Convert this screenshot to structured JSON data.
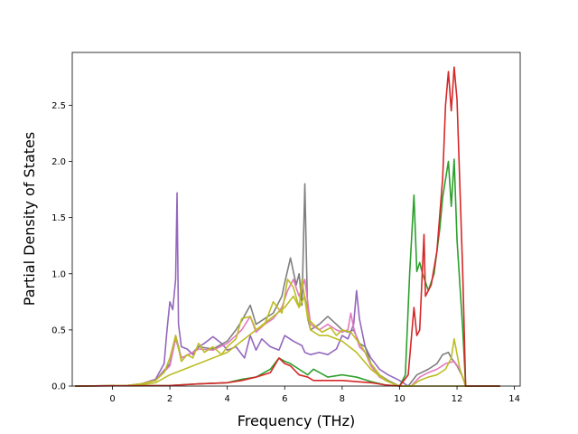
{
  "chart_data": {
    "type": "line",
    "title": "",
    "xlabel": "Frequency (THz)",
    "ylabel": "Partial Density of States",
    "xlim": [
      -1.4,
      14.2
    ],
    "ylim": [
      0.0,
      2.97
    ],
    "xticks": [
      0,
      2,
      4,
      6,
      8,
      10,
      12,
      14
    ],
    "yticks": [
      0.0,
      0.5,
      1.0,
      1.5,
      2.0,
      2.5
    ],
    "xtick_labels": [
      "0",
      "2",
      "4",
      "6",
      "8",
      "10",
      "12",
      "14"
    ],
    "ytick_labels": [
      "0.0",
      "0.5",
      "1.0",
      "1.5",
      "2.0",
      "2.5"
    ],
    "grid": false,
    "legend": "none",
    "series": [
      {
        "color": "#9467bd",
        "x": [
          -1.3,
          0.5,
          1.0,
          1.5,
          1.8,
          1.9,
          2.0,
          2.1,
          2.2,
          2.25,
          2.3,
          2.4,
          2.6,
          2.8,
          3.0,
          3.2,
          3.5,
          3.8,
          4.0,
          4.3,
          4.6,
          4.8,
          5.0,
          5.2,
          5.5,
          5.8,
          6.0,
          6.3,
          6.6,
          6.7,
          6.9,
          7.2,
          7.5,
          7.8,
          8.0,
          8.2,
          8.4,
          8.5,
          8.6,
          8.8,
          9.0,
          9.3,
          9.6,
          10.0,
          10.3,
          13.5
        ],
        "y": [
          0,
          0.005,
          0.02,
          0.06,
          0.2,
          0.5,
          0.75,
          0.68,
          0.95,
          1.72,
          0.55,
          0.35,
          0.33,
          0.28,
          0.35,
          0.38,
          0.44,
          0.38,
          0.32,
          0.35,
          0.25,
          0.45,
          0.32,
          0.42,
          0.35,
          0.32,
          0.45,
          0.4,
          0.36,
          0.3,
          0.28,
          0.3,
          0.28,
          0.33,
          0.45,
          0.42,
          0.55,
          0.85,
          0.6,
          0.35,
          0.25,
          0.15,
          0.1,
          0.05,
          0.0,
          0.0
        ]
      },
      {
        "color": "#7f7f7f",
        "x": [
          -1.3,
          0.5,
          1.0,
          1.5,
          2.0,
          2.2,
          2.4,
          2.8,
          3.0,
          3.5,
          4.0,
          4.3,
          4.5,
          4.8,
          5.0,
          5.3,
          5.6,
          5.9,
          6.0,
          6.2,
          6.4,
          6.5,
          6.6,
          6.7,
          6.8,
          6.9,
          7.2,
          7.5,
          7.8,
          8.0,
          8.2,
          8.4,
          8.6,
          8.8,
          9.0,
          9.3,
          9.6,
          10.0,
          10.3,
          10.6,
          11.0,
          11.3,
          11.5,
          11.7,
          11.8,
          12.0,
          12.2,
          12.3,
          13.5
        ],
        "y": [
          0,
          0.005,
          0.02,
          0.05,
          0.2,
          0.45,
          0.25,
          0.3,
          0.35,
          0.33,
          0.4,
          0.5,
          0.58,
          0.72,
          0.55,
          0.6,
          0.65,
          0.8,
          0.92,
          1.14,
          0.9,
          1.0,
          0.72,
          1.8,
          0.6,
          0.5,
          0.55,
          0.62,
          0.55,
          0.5,
          0.48,
          0.5,
          0.38,
          0.35,
          0.2,
          0.1,
          0.05,
          0.0,
          0.0,
          0.1,
          0.15,
          0.2,
          0.28,
          0.3,
          0.25,
          0.18,
          0.08,
          0.0,
          0.0
        ]
      },
      {
        "color": "#e377c2",
        "x": [
          -1.3,
          0.5,
          1.0,
          1.5,
          2.0,
          2.2,
          2.4,
          2.8,
          3.0,
          3.5,
          4.0,
          4.3,
          4.5,
          4.8,
          5.0,
          5.3,
          5.6,
          5.9,
          6.1,
          6.3,
          6.5,
          6.7,
          6.9,
          7.2,
          7.5,
          7.8,
          8.0,
          8.2,
          8.3,
          8.4,
          8.6,
          8.8,
          9.0,
          9.3,
          9.6,
          10.0,
          10.4,
          10.7,
          11.0,
          11.3,
          11.6,
          11.9,
          12.1,
          12.3,
          13.5
        ],
        "y": [
          0,
          0.005,
          0.02,
          0.05,
          0.18,
          0.42,
          0.25,
          0.3,
          0.33,
          0.32,
          0.38,
          0.45,
          0.5,
          0.62,
          0.48,
          0.55,
          0.6,
          0.7,
          0.85,
          0.95,
          0.8,
          0.95,
          0.55,
          0.5,
          0.55,
          0.5,
          0.48,
          0.5,
          0.65,
          0.52,
          0.35,
          0.3,
          0.18,
          0.08,
          0.04,
          0.0,
          0.0,
          0.08,
          0.12,
          0.15,
          0.2,
          0.22,
          0.15,
          0.0,
          0.0
        ]
      },
      {
        "color": "#bcbd22",
        "x": [
          -1.3,
          0.5,
          1.0,
          1.5,
          1.8,
          2.0,
          2.2,
          2.4,
          2.6,
          2.8,
          3.0,
          3.2,
          3.5,
          3.8,
          4.0,
          4.3,
          4.5,
          4.8,
          5.0,
          5.3,
          5.6,
          5.9,
          6.1,
          6.3,
          6.5,
          6.6,
          6.8,
          7.0,
          7.3,
          7.6,
          7.8,
          8.0,
          8.3,
          8.6,
          8.8,
          9.0,
          9.3,
          9.6,
          10.0,
          10.4,
          10.7,
          11.0,
          11.3,
          11.6,
          11.8,
          11.9,
          12.1,
          12.3,
          13.5
        ],
        "y": [
          0,
          0.005,
          0.02,
          0.05,
          0.12,
          0.25,
          0.45,
          0.22,
          0.28,
          0.25,
          0.38,
          0.3,
          0.35,
          0.28,
          0.35,
          0.42,
          0.6,
          0.62,
          0.5,
          0.55,
          0.75,
          0.65,
          0.95,
          0.88,
          0.7,
          0.95,
          0.6,
          0.55,
          0.48,
          0.52,
          0.45,
          0.5,
          0.48,
          0.38,
          0.3,
          0.2,
          0.1,
          0.04,
          0.0,
          0.0,
          0.05,
          0.08,
          0.1,
          0.15,
          0.25,
          0.42,
          0.15,
          0.0,
          0.0
        ]
      },
      {
        "color": "#bcbd22",
        "x": [
          -1.3,
          0.5,
          1.0,
          1.5,
          2.0,
          2.5,
          3.0,
          3.5,
          4.0,
          4.5,
          5.0,
          5.5,
          6.0,
          6.3,
          6.5,
          6.7,
          6.9,
          7.2,
          7.5,
          8.0,
          8.5,
          9.0,
          9.5,
          10.0,
          13.5
        ],
        "y": [
          0,
          0.005,
          0.01,
          0.03,
          0.1,
          0.15,
          0.2,
          0.25,
          0.3,
          0.4,
          0.5,
          0.6,
          0.7,
          0.8,
          0.7,
          0.8,
          0.5,
          0.45,
          0.45,
          0.4,
          0.3,
          0.15,
          0.05,
          0.0,
          0.0
        ]
      },
      {
        "color": "#2ca02c",
        "x": [
          -1.3,
          2.0,
          3.0,
          4.0,
          4.5,
          5.0,
          5.5,
          5.8,
          6.0,
          6.2,
          6.5,
          6.8,
          7.0,
          7.5,
          8.0,
          8.5,
          9.0,
          9.5,
          10.0,
          10.2,
          10.35,
          10.5,
          10.6,
          10.7,
          10.8,
          11.0,
          11.2,
          11.4,
          11.5,
          11.7,
          11.8,
          11.9,
          12.0,
          12.2,
          12.3,
          13.5
        ],
        "y": [
          0,
          0.005,
          0.02,
          0.03,
          0.06,
          0.08,
          0.15,
          0.25,
          0.22,
          0.2,
          0.15,
          0.1,
          0.15,
          0.08,
          0.1,
          0.08,
          0.04,
          0.01,
          0.0,
          0.1,
          1.0,
          1.7,
          1.02,
          1.1,
          1.0,
          0.85,
          1.0,
          1.4,
          1.68,
          2.0,
          1.6,
          2.02,
          1.3,
          0.5,
          0.0,
          0.0
        ]
      },
      {
        "color": "#d62728",
        "x": [
          -1.3,
          2.0,
          3.0,
          4.0,
          4.5,
          5.0,
          5.5,
          5.8,
          6.0,
          6.2,
          6.5,
          6.8,
          7.0,
          7.5,
          8.0,
          8.5,
          9.0,
          9.5,
          10.0,
          10.3,
          10.5,
          10.6,
          10.7,
          10.85,
          10.9,
          11.1,
          11.3,
          11.5,
          11.6,
          11.7,
          11.8,
          11.9,
          12.0,
          12.2,
          12.3,
          13.5
        ],
        "y": [
          0,
          0.005,
          0.02,
          0.03,
          0.05,
          0.08,
          0.12,
          0.25,
          0.2,
          0.18,
          0.1,
          0.08,
          0.05,
          0.05,
          0.05,
          0.04,
          0.03,
          0.01,
          0.0,
          0.1,
          0.7,
          0.45,
          0.5,
          1.35,
          0.8,
          0.9,
          1.2,
          1.85,
          2.5,
          2.8,
          2.45,
          2.84,
          2.55,
          1.0,
          0.0,
          0.0
        ]
      }
    ]
  }
}
